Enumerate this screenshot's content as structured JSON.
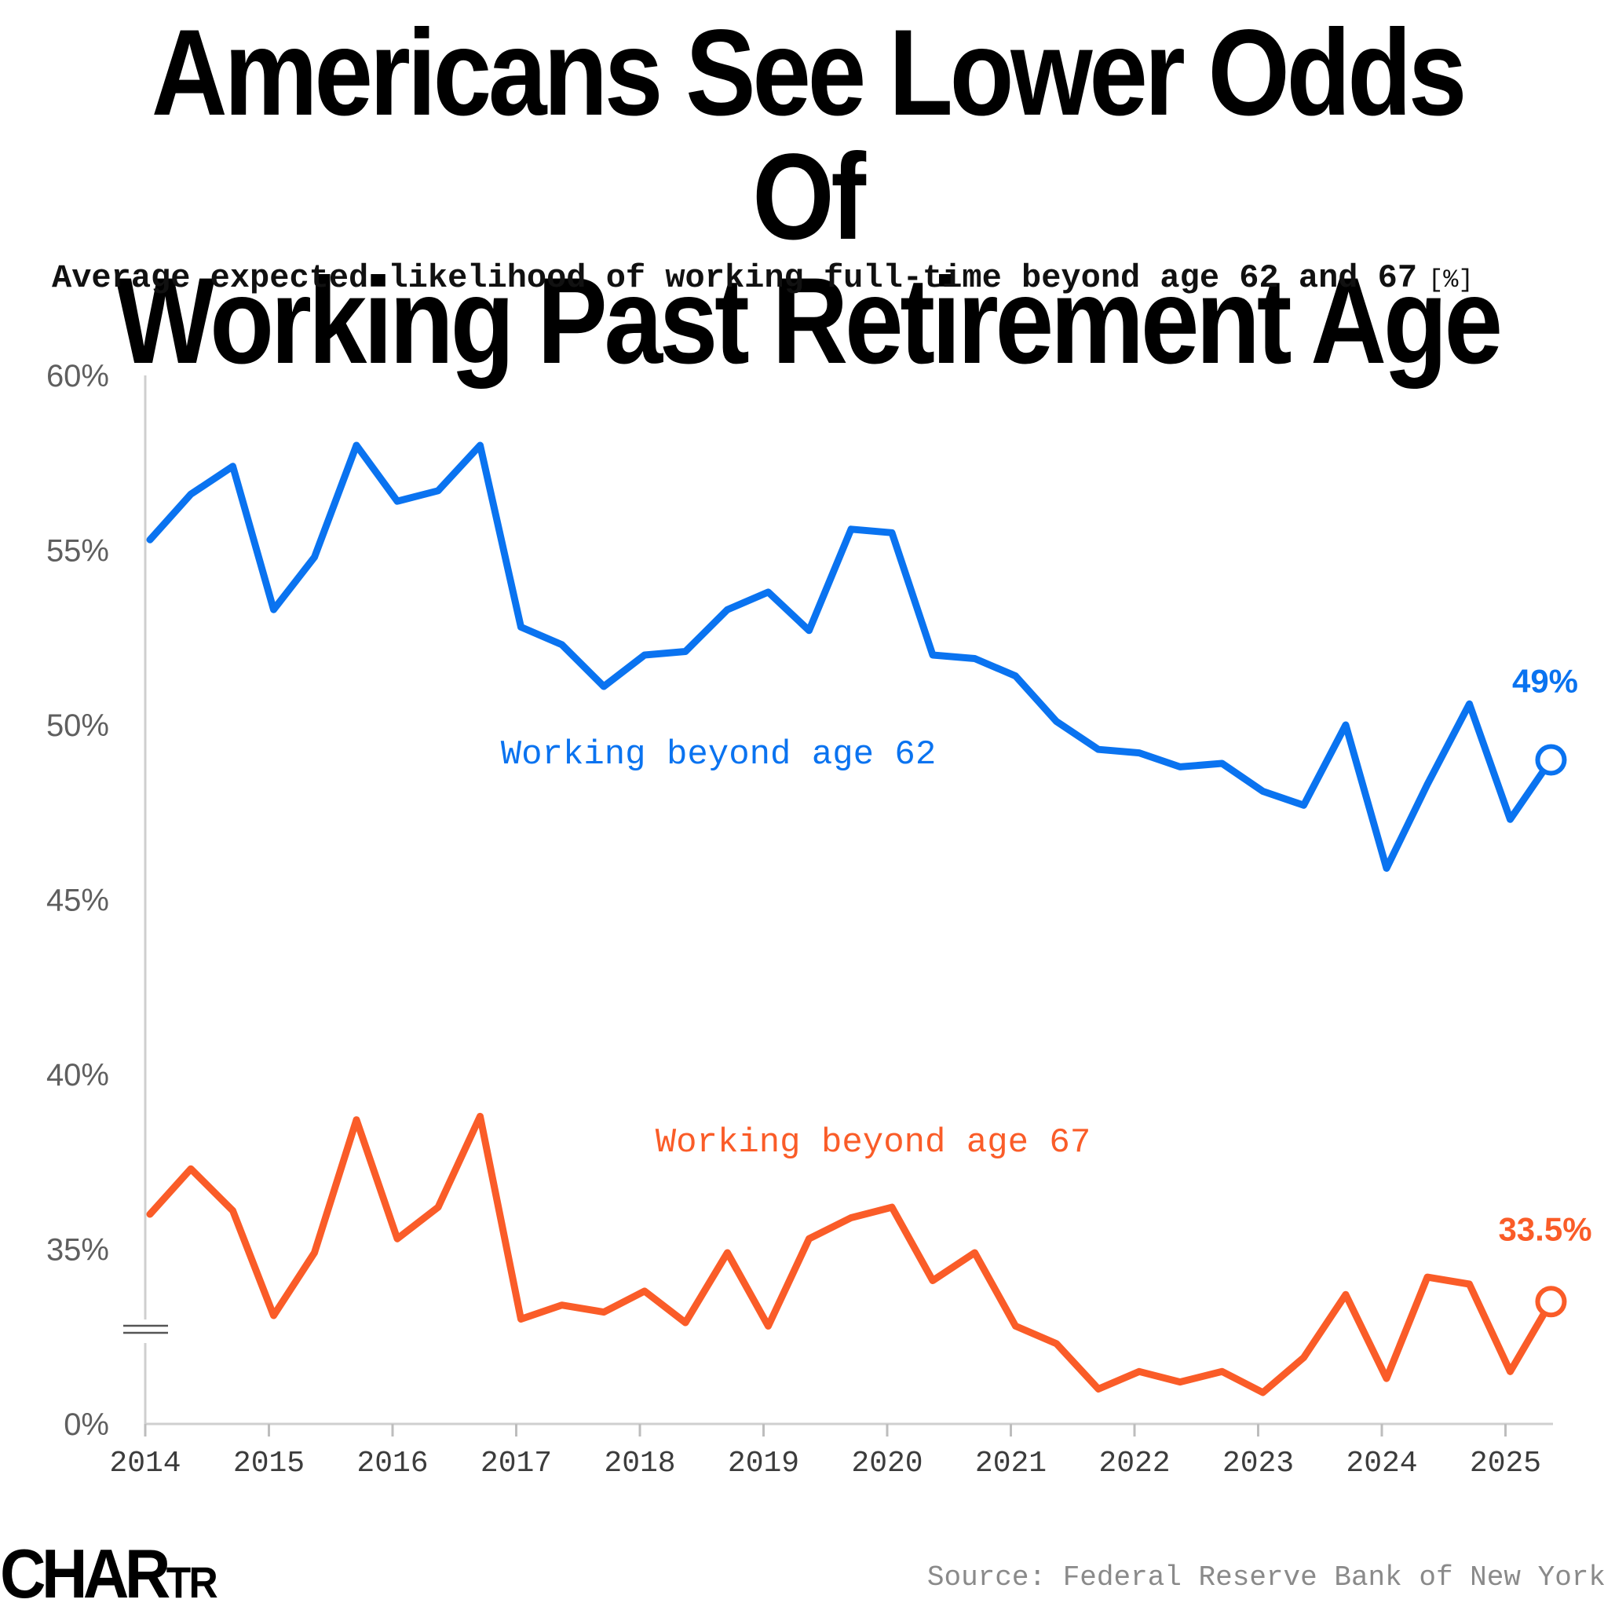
{
  "title_line1": "Americans See Lower Odds Of",
  "title_line2": "Working Past Retirement Age",
  "subtitle": "Average expected likelihood of working full-time beyond age 62 and 67",
  "subtitle_unit": "[%]",
  "logo": {
    "main": "CHAR",
    "small": "TR"
  },
  "source": "Source: Federal Reserve Bank of New York",
  "colors": {
    "blue": "#0a73f0",
    "orange": "#fa5c28",
    "axis": "#cfcfcf",
    "text": "#5f5f5f"
  },
  "chart_data": {
    "type": "line",
    "title": "Americans See Lower Odds Of Working Past Retirement Age",
    "xlabel": "",
    "ylabel": "%",
    "ylim": [
      0,
      60
    ],
    "axis_break": "between 0% and 35%",
    "y_ticks": [
      "60%",
      "55%",
      "50%",
      "45%",
      "40%",
      "35%",
      "0%"
    ],
    "x_tick_labels": [
      "2014",
      "2015",
      "2016",
      "2017",
      "2018",
      "2019",
      "2020",
      "2021",
      "2022",
      "2023",
      "2024",
      "2025"
    ],
    "x": [
      2014.0,
      2014.33,
      2014.67,
      2015.0,
      2015.33,
      2015.67,
      2016.0,
      2016.33,
      2016.67,
      2017.0,
      2017.33,
      2017.67,
      2018.0,
      2018.33,
      2018.67,
      2019.0,
      2019.33,
      2019.67,
      2020.0,
      2020.33,
      2020.67,
      2021.0,
      2021.33,
      2021.67,
      2022.0,
      2022.33,
      2022.67,
      2023.0,
      2023.33,
      2023.67,
      2024.0,
      2024.33,
      2024.67,
      2025.0,
      2025.33
    ],
    "series": [
      {
        "name": "Working beyond age 62",
        "color": "#0a73f0",
        "end_label": "49%",
        "values": [
          55.3,
          56.6,
          57.4,
          53.3,
          54.8,
          58.0,
          56.4,
          56.7,
          58.0,
          52.8,
          52.3,
          51.1,
          52.0,
          52.1,
          53.3,
          53.8,
          52.7,
          55.6,
          55.5,
          52.0,
          51.9,
          51.4,
          50.1,
          49.3,
          49.2,
          48.8,
          48.9,
          48.1,
          47.7,
          50.0,
          45.9,
          48.3,
          50.6,
          47.3,
          49.0
        ]
      },
      {
        "name": "Working beyond age 67",
        "color": "#fa5c28",
        "end_label": "33.5%",
        "values": [
          36.0,
          37.3,
          36.1,
          33.1,
          34.9,
          38.7,
          35.3,
          36.2,
          38.8,
          33.0,
          33.4,
          33.2,
          33.8,
          32.9,
          34.9,
          32.8,
          35.3,
          35.9,
          36.2,
          34.1,
          34.9,
          32.8,
          32.3,
          31.0,
          31.5,
          31.2,
          31.5,
          30.9,
          31.9,
          33.7,
          31.3,
          34.2,
          34.0,
          31.5,
          33.5
        ]
      }
    ]
  }
}
